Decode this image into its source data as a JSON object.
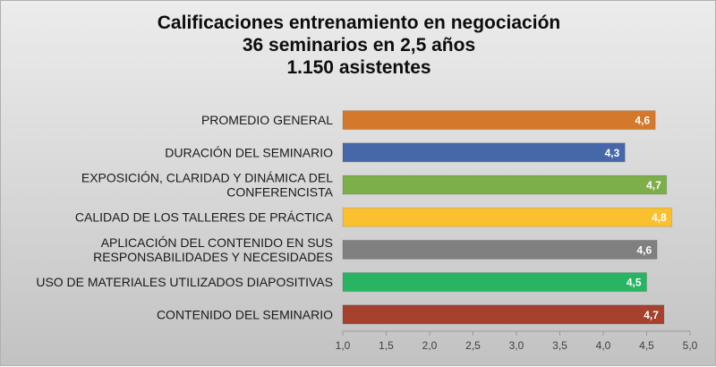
{
  "chart_data": {
    "type": "bar",
    "orientation": "horizontal",
    "title_lines": [
      "Calificaciones entrenamiento en negociación",
      "36 seminarios en 2,5 años",
      "1.150 asistentes"
    ],
    "categories": [
      [
        "PROMEDIO GENERAL"
      ],
      [
        "DURACIÓN DEL SEMINARIO"
      ],
      [
        "EXPOSICIÓN, CLARIDAD Y DINÁMICA DEL",
        "CONFERENCISTA"
      ],
      [
        "CALIDAD DE LOS TALLERES DE PRÁCTICA"
      ],
      [
        "APLICACIÓN DEL CONTENIDO EN SUS",
        "RESPONSABILIDADES Y NECESIDADES"
      ],
      [
        "USO DE MATERIALES UTILIZADOS DIAPOSITIVAS"
      ],
      [
        "CONTENIDO DEL SEMINARIO"
      ]
    ],
    "values": [
      4.6,
      4.25,
      4.73,
      4.79,
      4.62,
      4.5,
      4.7
    ],
    "value_labels": [
      "4,6",
      "4,3",
      "4,7",
      "4,8",
      "4,6",
      "4,5",
      "4,7"
    ],
    "colors": [
      "#d4792c",
      "#4668a8",
      "#7cae4a",
      "#fbc02d",
      "#808080",
      "#28b463",
      "#a5412c"
    ],
    "xlim": [
      1.0,
      5.0
    ],
    "xticks": [
      1.0,
      1.5,
      2.0,
      2.5,
      3.0,
      3.5,
      4.0,
      4.5,
      5.0
    ],
    "xtick_labels": [
      "1,0",
      "1,5",
      "2,0",
      "2,5",
      "3,0",
      "3,5",
      "4,0",
      "4,5",
      "5,0"
    ],
    "grid": false,
    "legend": "none"
  }
}
